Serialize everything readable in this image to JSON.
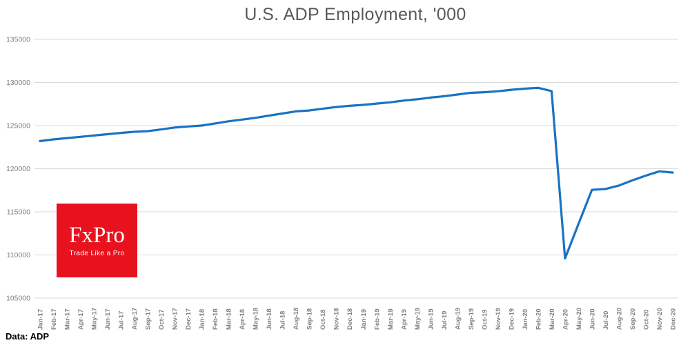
{
  "chart_data": {
    "type": "line",
    "title": "U.S. ADP Employment, '000",
    "xlabel": "",
    "ylabel": "",
    "ylim": [
      105000,
      135000
    ],
    "yticks": [
      135000,
      130000,
      125000,
      120000,
      115000,
      110000,
      105000
    ],
    "grid": "horizontal",
    "legend": "none",
    "categories": [
      "Jan-17",
      "Feb-17",
      "Mar-17",
      "Apr-17",
      "May-17",
      "Jun-17",
      "Jul-17",
      "Aug-17",
      "Sep-17",
      "Oct-17",
      "Nov-17",
      "Dec-17",
      "Jan-18",
      "Feb-18",
      "Mar-18",
      "Apr-18",
      "May-18",
      "Jun-18",
      "Jul-18",
      "Aug-18",
      "Sep-18",
      "Oct-18",
      "Nov-18",
      "Dec-18",
      "Jan-19",
      "Feb-19",
      "Mar-19",
      "Apr-19",
      "May-19",
      "Jun-19",
      "Jul-19",
      "Aug-19",
      "Sep-19",
      "Oct-19",
      "Nov-19",
      "Dec-19",
      "Jan-20",
      "Feb-20",
      "Mar-20",
      "Apr-20",
      "May-20",
      "Jun-20",
      "Jul-20",
      "Aug-20",
      "Sep-20",
      "Oct-20",
      "Nov-20",
      "Dec-20"
    ],
    "series": [
      {
        "name": "ADP Employment",
        "values": [
          123200,
          123400,
          123550,
          123700,
          123850,
          124000,
          124150,
          124280,
          124350,
          124550,
          124780,
          124900,
          125000,
          125250,
          125500,
          125700,
          125900,
          126150,
          126400,
          126650,
          126750,
          126950,
          127150,
          127300,
          127400,
          127550,
          127700,
          127900,
          128050,
          128250,
          128400,
          128600,
          128800,
          128870,
          128980,
          129150,
          129280,
          129380,
          129000,
          109600,
          113600,
          117550,
          117650,
          118050,
          118650,
          119200,
          119700,
          119550
        ]
      }
    ]
  },
  "source_note": "Data: ADP",
  "logo": {
    "brand": "FxPro",
    "tagline": "Trade Like a Pro"
  },
  "colors": {
    "line": "#1a72c4",
    "grid": "#d9d9d9",
    "axis_label": "#7f7f7f",
    "title": "#595959",
    "logo_background": "#e8121f",
    "logo_text": "#ffffff",
    "source_text": "#000000"
  }
}
